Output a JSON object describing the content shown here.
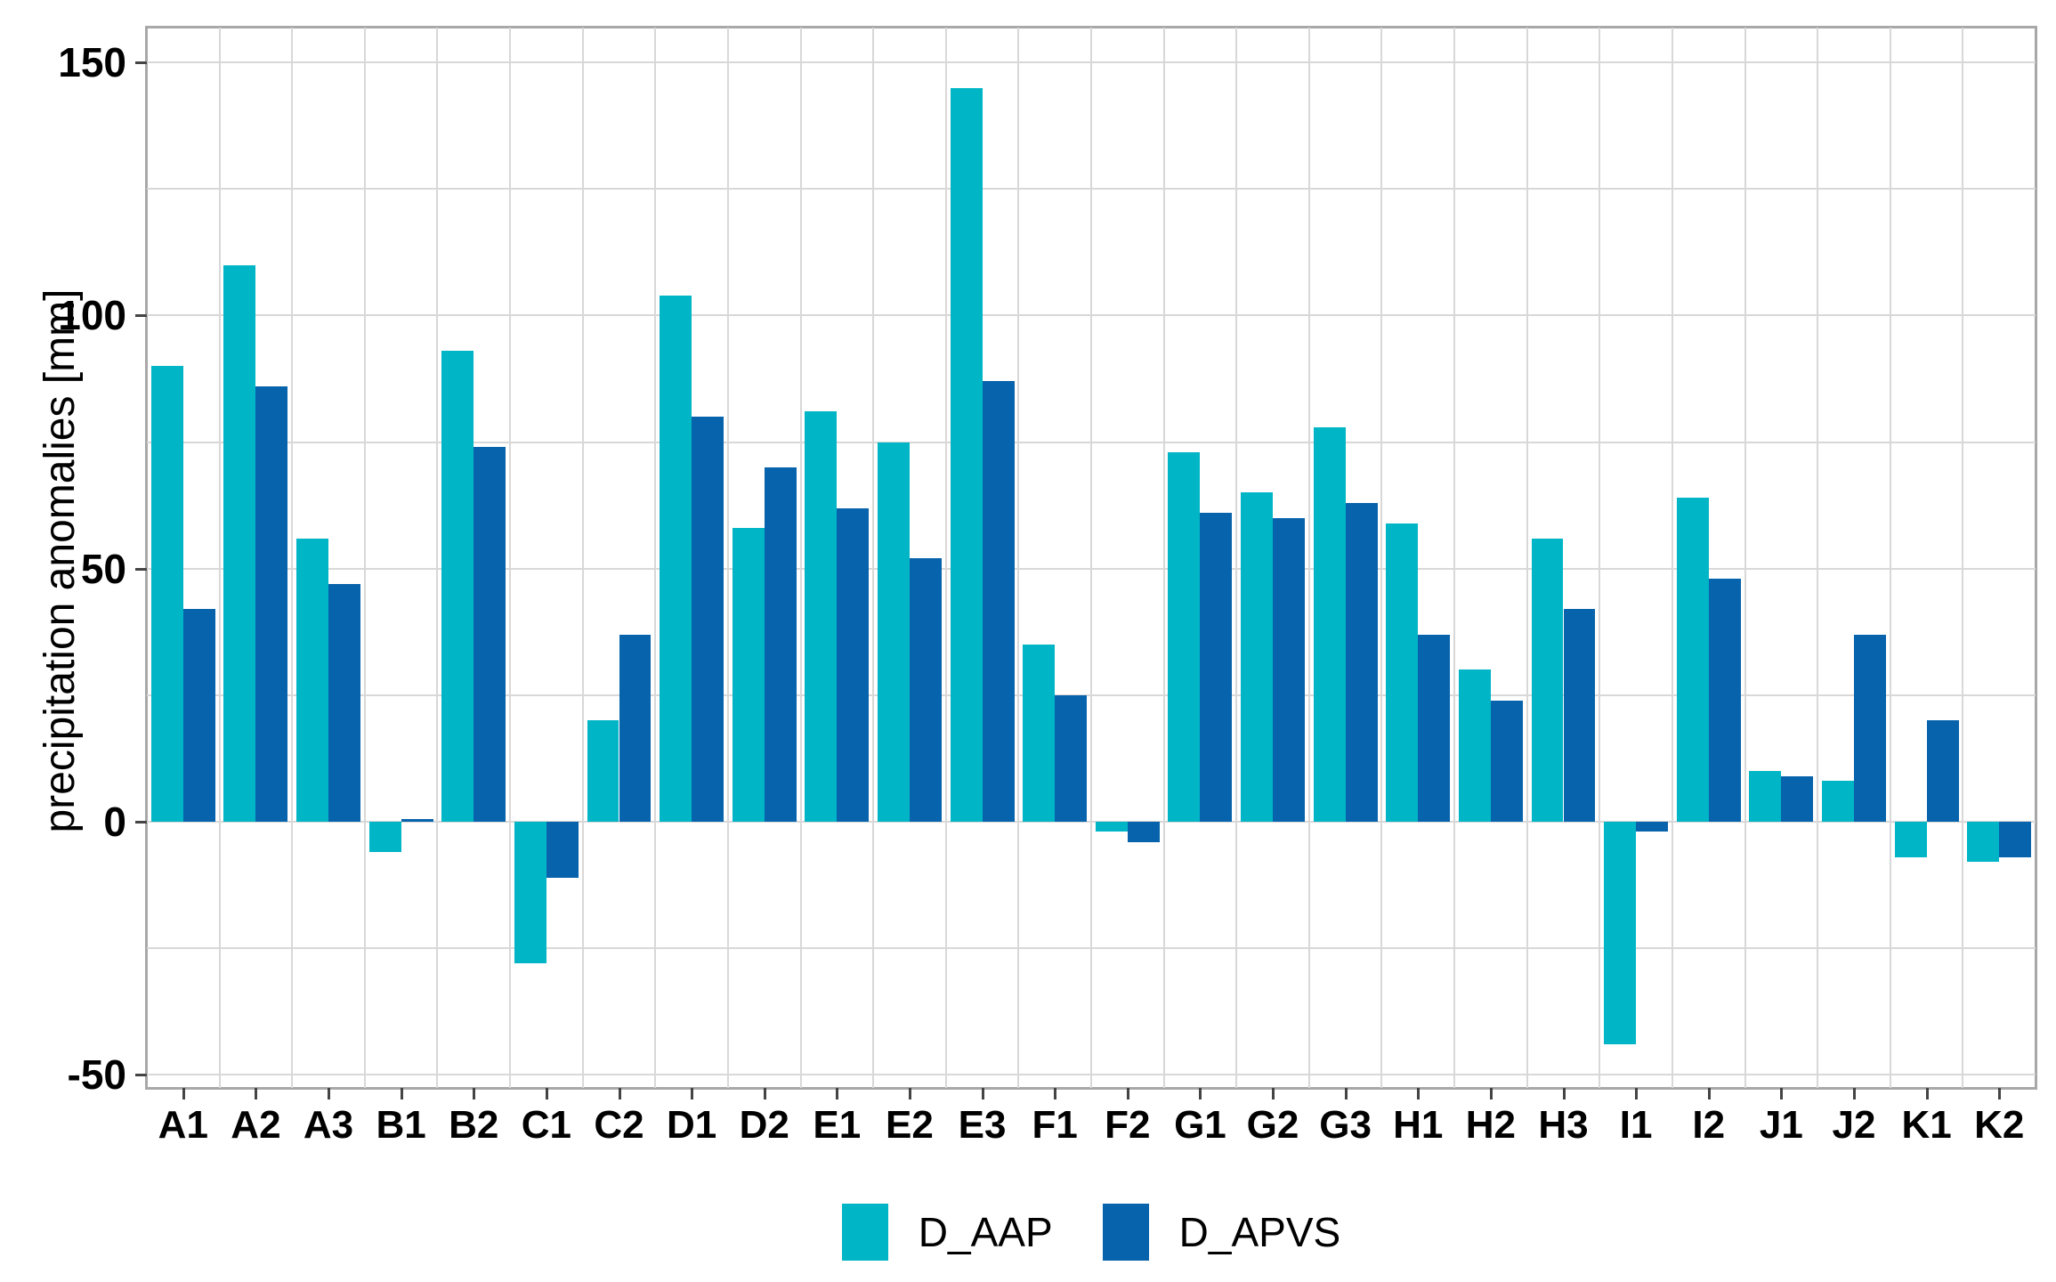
{
  "chart_data": {
    "type": "bar",
    "title": "",
    "xlabel": "",
    "ylabel": "precipitation anomalies [mm]",
    "categories": [
      "A1",
      "A2",
      "A3",
      "B1",
      "B2",
      "C1",
      "C2",
      "D1",
      "D2",
      "E1",
      "E2",
      "E3",
      "F1",
      "F2",
      "G1",
      "G2",
      "G3",
      "H1",
      "H2",
      "H3",
      "I1",
      "I2",
      "J1",
      "J2",
      "K1",
      "K2"
    ],
    "series": [
      {
        "name": "D_AAP",
        "color": "#00b5c6",
        "values": [
          90,
          110,
          56,
          -6,
          93,
          -28,
          20,
          104,
          58,
          81,
          75,
          145,
          35,
          -2,
          73,
          65,
          78,
          59,
          30,
          56,
          -44,
          64,
          10,
          8,
          -7,
          -8
        ]
      },
      {
        "name": "D_APVS",
        "color": "#0763ab",
        "values": [
          42,
          86,
          47,
          0.5,
          74,
          -11,
          37,
          80,
          70,
          62,
          52,
          87,
          25,
          -4,
          61,
          60,
          63,
          37,
          24,
          42,
          -2,
          48,
          9,
          37,
          20,
          -7
        ]
      }
    ],
    "yticks": [
      -50,
      0,
      50,
      100,
      150
    ],
    "minor_yticks": [
      -25,
      25,
      75,
      125
    ],
    "ylim": [
      -52.6,
      156.9
    ],
    "grid": true,
    "legend_position": "bottom"
  },
  "colors": {
    "grid": "#d8d8d8",
    "panel_border": "#a8a8a8",
    "tick_mark": "#444444",
    "text": "#000000",
    "background": "#ffffff"
  }
}
